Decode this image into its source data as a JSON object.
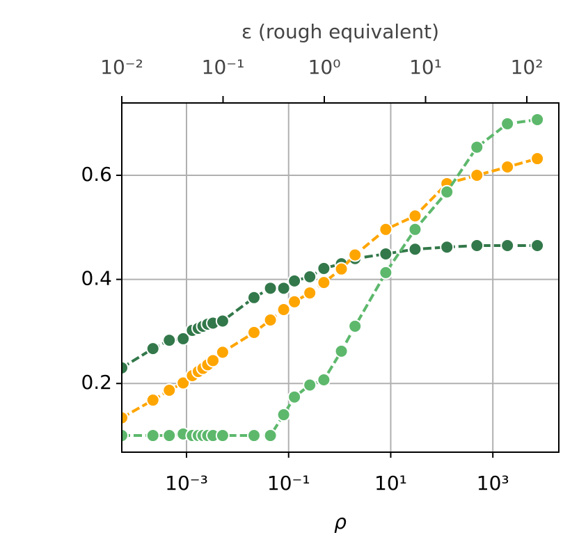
{
  "chart_data": {
    "type": "line",
    "xlabel": "ρ",
    "x2label": "ε (rough equivalent)",
    "xscale": "log",
    "x2scale": "log",
    "grid": true,
    "x": [
      5.4e-05,
      0.00022,
      0.00046,
      0.00086,
      0.0013,
      0.0017,
      0.0021,
      0.0026,
      0.0033,
      0.0051,
      0.021,
      0.044,
      0.08,
      0.13,
      0.26,
      0.49,
      1.08,
      2.0,
      8.0,
      30,
      126,
      487,
      1930,
      7430
    ],
    "series": [
      {
        "color": "#33784a",
        "values": [
          0.23,
          0.267,
          0.283,
          0.286,
          0.302,
          0.306,
          0.31,
          0.314,
          0.316,
          0.32,
          0.365,
          0.383,
          0.383,
          0.397,
          0.405,
          0.421,
          0.43,
          0.44,
          0.449,
          0.458,
          0.462,
          0.465,
          0.465,
          0.465
        ]
      },
      {
        "color": "#ffa500",
        "values": [
          0.134,
          0.168,
          0.187,
          0.201,
          0.215,
          0.223,
          0.229,
          0.236,
          0.244,
          0.26,
          0.298,
          0.322,
          0.342,
          0.357,
          0.374,
          0.394,
          0.42,
          0.447,
          0.496,
          0.522,
          0.584,
          0.6,
          0.616,
          0.632
        ]
      },
      {
        "color": "#5db86c",
        "values": [
          0.1,
          0.1,
          0.1,
          0.103,
          0.1,
          0.1,
          0.1,
          0.1,
          0.1,
          0.1,
          0.1,
          0.1,
          0.14,
          0.174,
          0.197,
          0.207,
          0.262,
          0.31,
          0.413,
          0.496,
          0.568,
          0.654,
          0.699,
          0.707
        ]
      }
    ],
    "xlim": [
      5.4e-05,
      19600.0
    ],
    "xticks": [
      {
        "value": 0.001,
        "label": "10⁻³"
      },
      {
        "value": 0.1,
        "label": "10⁻¹"
      },
      {
        "value": 10,
        "label": "10¹"
      },
      {
        "value": 1000,
        "label": "10³"
      }
    ],
    "x2lim": [
      0.01,
      207
    ],
    "x2ticks": [
      {
        "value": 0.01,
        "label": "10⁻²"
      },
      {
        "value": 0.1,
        "label": "10⁻¹"
      },
      {
        "value": 1,
        "label": "10⁰"
      },
      {
        "value": 10,
        "label": "10¹"
      },
      {
        "value": 100,
        "label": "10²"
      }
    ],
    "ylim": [
      0.068,
      0.739
    ],
    "yticks": [
      0.2,
      0.4,
      0.6
    ]
  }
}
